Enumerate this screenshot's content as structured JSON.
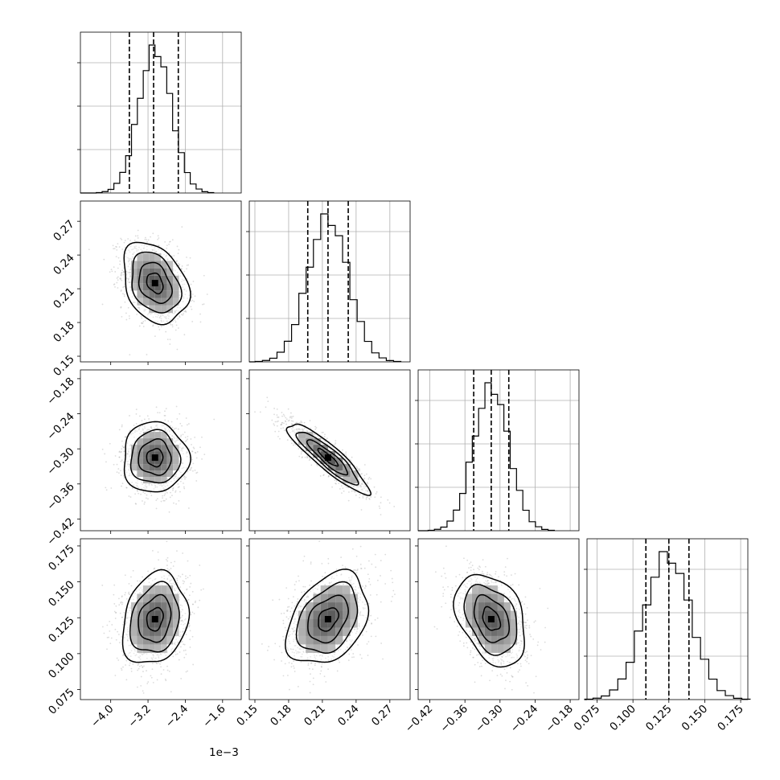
{
  "chart_data": {
    "type": "corner",
    "grid": true,
    "offset_label": "1e−3",
    "params": [
      {
        "id": "p0",
        "scale": 0.001,
        "mean": -3.05,
        "std": 0.35,
        "lim": [
          -4.65,
          -1.2
        ],
        "ticks": [
          -4.0,
          -3.2,
          -2.4,
          -1.6
        ],
        "tick_labels": [
          "−4.0",
          "−3.2",
          "−2.4",
          "−1.6"
        ],
        "quantiles": [
          -3.6,
          -3.08,
          -2.55
        ]
      },
      {
        "id": "p1",
        "scale": 1,
        "mean": 0.215,
        "std": 0.018,
        "lim": [
          0.145,
          0.288
        ],
        "ticks": [
          0.15,
          0.18,
          0.21,
          0.24,
          0.27
        ],
        "tick_labels": [
          "0.15",
          "0.18",
          "0.21",
          "0.24",
          "0.27"
        ],
        "quantiles": [
          0.197,
          0.215,
          0.233
        ]
      },
      {
        "id": "p2",
        "scale": 1,
        "mean": -0.315,
        "std": 0.03,
        "lim": [
          -0.44,
          -0.165
        ],
        "ticks": [
          -0.42,
          -0.36,
          -0.3,
          -0.24,
          -0.18
        ],
        "tick_labels": [
          "−0.42",
          "−0.36",
          "−0.30",
          "−0.24",
          "−0.18"
        ],
        "quantiles": [
          -0.345,
          -0.315,
          -0.285
        ]
      },
      {
        "id": "p3",
        "scale": 1,
        "mean": 0.124,
        "std": 0.016,
        "lim": [
          0.068,
          0.18
        ],
        "ticks": [
          0.075,
          0.1,
          0.125,
          0.15,
          0.175
        ],
        "tick_labels": [
          "0.075",
          "0.100",
          "0.125",
          "0.150",
          "0.175"
        ],
        "quantiles": [
          0.109,
          0.125,
          0.139
        ]
      }
    ],
    "correlations": [
      [
        0,
        1,
        -0.3
      ],
      [
        0,
        2,
        0.0
      ],
      [
        0,
        3,
        0.2
      ],
      [
        1,
        2,
        -0.9
      ],
      [
        1,
        3,
        0.35
      ],
      [
        2,
        3,
        -0.35
      ]
    ],
    "bins": 20,
    "contour_levels": 4
  }
}
